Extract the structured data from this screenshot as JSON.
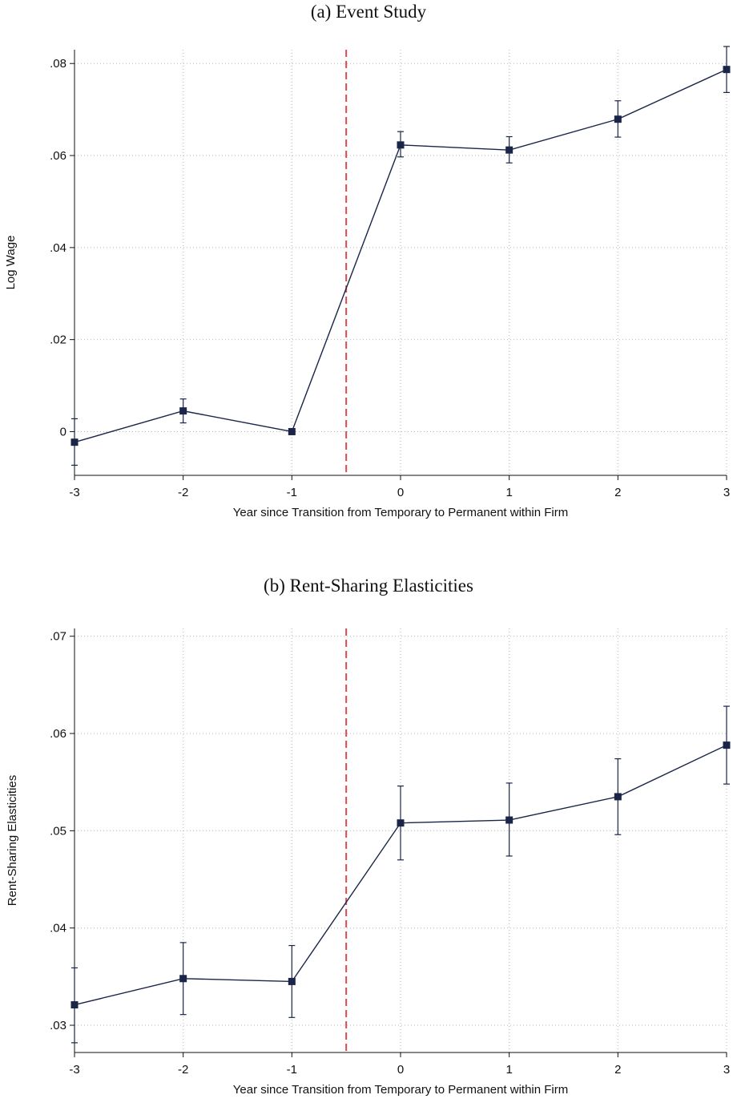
{
  "chart_data": [
    {
      "type": "line",
      "title": "(a) Event Study",
      "xlabel": "Year since Transition from Temporary to Permanent within Firm",
      "ylabel": "Log Wage",
      "x": [
        -3,
        -2,
        -1,
        0,
        1,
        2,
        3
      ],
      "xticks": [
        "-3",
        "-2",
        "-1",
        "0",
        "1",
        "2",
        "3"
      ],
      "xlim": [
        -3,
        3
      ],
      "ylim": [
        -0.0095,
        0.083
      ],
      "yticks": [
        0,
        0.02,
        0.04,
        0.06,
        0.08
      ],
      "ytick_labels": [
        "0",
        ".02",
        ".04",
        ".06",
        ".08"
      ],
      "series": [
        {
          "values": [
            -0.0023,
            0.0045,
            0.0,
            0.0623,
            0.0612,
            0.0679,
            0.0787
          ],
          "ci_low": [
            -0.0073,
            0.0019,
            0.0,
            0.0597,
            0.0584,
            0.064,
            0.0737
          ],
          "ci_high": [
            0.0028,
            0.0071,
            0.0,
            0.0652,
            0.0641,
            0.0719,
            0.0837
          ]
        }
      ],
      "reference_line": {
        "x": -0.5,
        "color": "#e0474c",
        "style": "dashed"
      },
      "grid": true
    },
    {
      "type": "line",
      "title": "(b) Rent-Sharing Elasticities",
      "xlabel": "Year since Transition from Temporary to Permanent within Firm",
      "ylabel": "Rent-Sharing Elasticities",
      "x": [
        -3,
        -2,
        -1,
        0,
        1,
        2,
        3
      ],
      "xticks": [
        "-3",
        "-2",
        "-1",
        "0",
        "1",
        "2",
        "3"
      ],
      "xlim": [
        -3,
        3
      ],
      "ylim": [
        0.0272,
        0.0708
      ],
      "yticks": [
        0.03,
        0.04,
        0.05,
        0.06,
        0.07
      ],
      "ytick_labels": [
        ".03",
        ".04",
        ".05",
        ".06",
        ".07"
      ],
      "series": [
        {
          "values": [
            0.0321,
            0.0348,
            0.0345,
            0.0508,
            0.0511,
            0.0535,
            0.0588
          ],
          "ci_low": [
            0.0282,
            0.0311,
            0.0308,
            0.047,
            0.0474,
            0.0496,
            0.0548
          ],
          "ci_high": [
            0.0359,
            0.0385,
            0.0382,
            0.0546,
            0.0549,
            0.0574,
            0.0628
          ]
        }
      ],
      "reference_line": {
        "x": -0.5,
        "color": "#e0474c",
        "style": "dashed"
      },
      "grid": true
    }
  ],
  "colors": {
    "series": "#1a2548",
    "reference": "#e0474c",
    "grid": "#b8b8b8"
  }
}
